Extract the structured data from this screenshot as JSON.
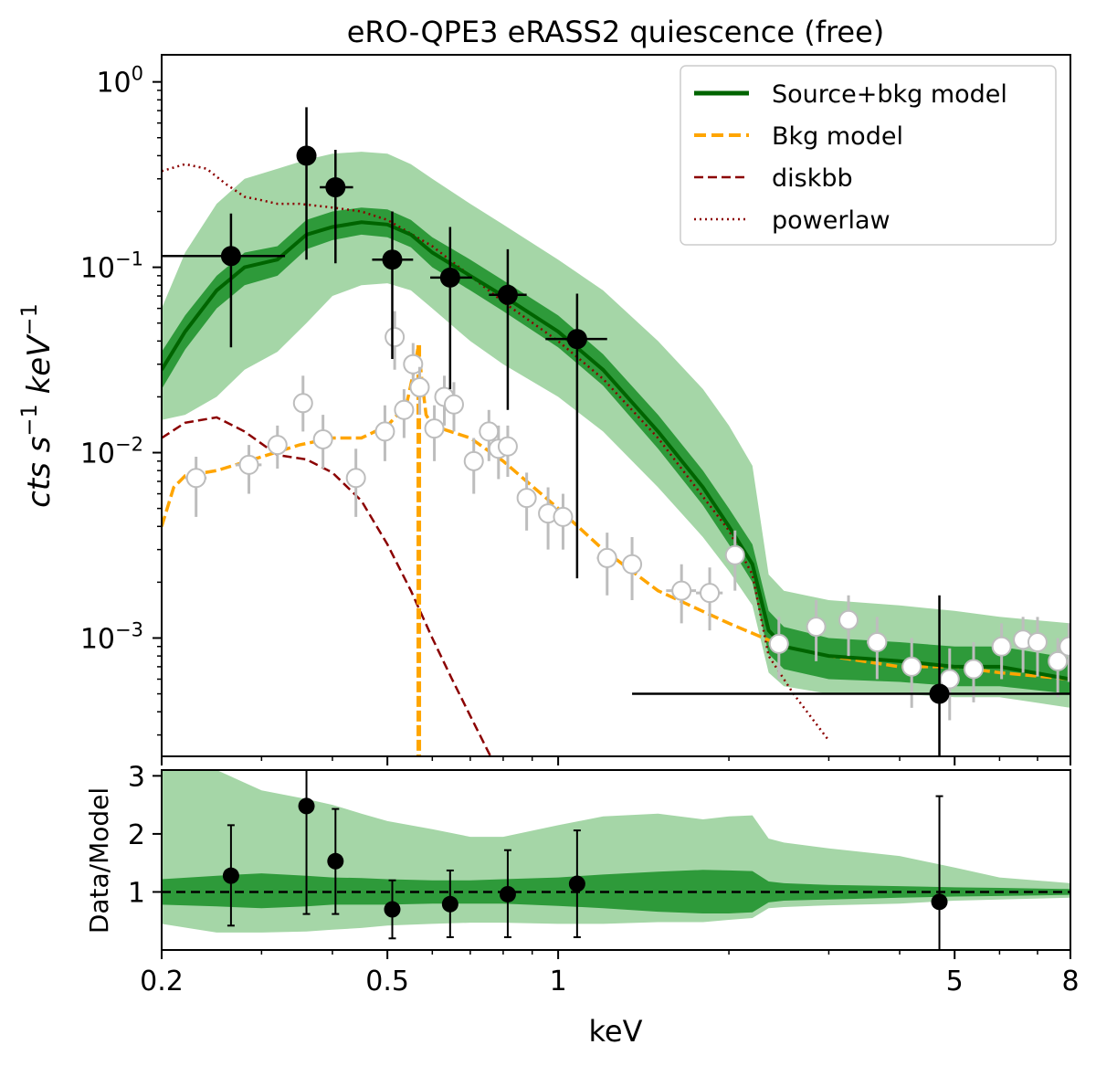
{
  "chart_data": [
    {
      "type": "line",
      "panel": "spectrum",
      "title": "eRO-QPE3 eRASS2 quiescence (free)",
      "ylabel": "cts s-1 keV-1",
      "ylabel_parts": {
        "base1": "cts s",
        "exp1": "−1",
        "base2": " keV",
        "exp2": "−1"
      },
      "xscale": "log",
      "yscale": "log",
      "xlim": [
        0.2,
        8.0
      ],
      "ylim": [
        0.00023,
        1.4
      ],
      "yticks": [
        {
          "value": 1.0,
          "base": "10",
          "exp": "0"
        },
        {
          "value": 0.1,
          "base": "10",
          "exp": "−1"
        },
        {
          "value": 0.01,
          "base": "10",
          "exp": "−2"
        },
        {
          "value": 0.001,
          "base": "10",
          "exp": "−3"
        }
      ],
      "legend": {
        "position": "upper right",
        "entries": [
          {
            "label": "Source+bkg model",
            "color": "#006400",
            "style": "solid"
          },
          {
            "label": "Bkg model",
            "color": "#FFA500",
            "style": "dashed"
          },
          {
            "label": "diskbb",
            "color": "#8B0000",
            "style": "dashed"
          },
          {
            "label": "powerlaw",
            "color": "#8B0000",
            "style": "dotted"
          }
        ]
      },
      "colors": {
        "band_outer": "#a5d6a7",
        "band_inner": "#2e9a3a",
        "model": "#006400",
        "bkg": "#FFA500",
        "disk": "#8B0000",
        "powerlaw": "#8B0000",
        "source_points": "#000000",
        "bkg_points": "#bdbdbd"
      },
      "series": [
        {
          "id": "model",
          "x": [
            0.2,
            0.22,
            0.25,
            0.28,
            0.32,
            0.36,
            0.4,
            0.45,
            0.5,
            0.55,
            0.6,
            0.7,
            0.8,
            1.0,
            1.2,
            1.5,
            1.8,
            2.0,
            2.2,
            2.35,
            2.5,
            3.0,
            4.0,
            5.0,
            6.0,
            8.0
          ],
          "y": [
            0.028,
            0.045,
            0.075,
            0.1,
            0.11,
            0.15,
            0.165,
            0.175,
            0.17,
            0.15,
            0.12,
            0.09,
            0.07,
            0.045,
            0.028,
            0.013,
            0.0065,
            0.004,
            0.0025,
            0.0011,
            0.0009,
            0.0008,
            0.00075,
            0.0007,
            0.0007,
            0.0006
          ],
          "inner_lo": [
            0.022,
            0.036,
            0.06,
            0.08,
            0.09,
            0.125,
            0.14,
            0.15,
            0.145,
            0.128,
            0.1,
            0.075,
            0.058,
            0.037,
            0.023,
            0.0105,
            0.0052,
            0.0032,
            0.002,
            0.00082,
            0.00068,
            0.0006,
            0.00058,
            0.00055,
            0.00055,
            0.0005
          ],
          "inner_hi": [
            0.035,
            0.055,
            0.09,
            0.12,
            0.13,
            0.18,
            0.2,
            0.21,
            0.205,
            0.18,
            0.145,
            0.11,
            0.085,
            0.055,
            0.034,
            0.016,
            0.008,
            0.005,
            0.0032,
            0.0014,
            0.00115,
            0.001,
            0.00095,
            0.0009,
            0.0009,
            0.00078
          ],
          "outer_lo": [
            0.015,
            0.016,
            0.02,
            0.028,
            0.035,
            0.05,
            0.07,
            0.08,
            0.082,
            0.075,
            0.06,
            0.04,
            0.03,
            0.02,
            0.013,
            0.0065,
            0.0035,
            0.0023,
            0.0015,
            0.00065,
            0.00055,
            0.0005,
            0.0005,
            0.00048,
            0.00048,
            0.00042
          ],
          "outer_hi": [
            0.06,
            0.12,
            0.22,
            0.3,
            0.34,
            0.38,
            0.41,
            0.42,
            0.41,
            0.36,
            0.3,
            0.22,
            0.17,
            0.11,
            0.075,
            0.04,
            0.022,
            0.014,
            0.0085,
            0.0022,
            0.0018,
            0.0016,
            0.0015,
            0.0014,
            0.0013,
            0.0012
          ]
        },
        {
          "id": "bkg",
          "x": [
            0.2,
            0.21,
            0.22,
            0.25,
            0.3,
            0.35,
            0.4,
            0.45,
            0.5,
            0.54,
            0.56,
            0.567,
            0.575,
            0.585,
            0.6,
            0.7,
            0.8,
            1.0,
            1.2,
            1.5,
            2.0,
            2.5,
            3.0,
            4.0,
            5.0,
            6.0,
            8.0
          ],
          "y": [
            0.004,
            0.0065,
            0.0075,
            0.008,
            0.0095,
            0.011,
            0.012,
            0.012,
            0.014,
            0.018,
            0.03,
            0.038,
            0.025,
            0.016,
            0.014,
            0.012,
            0.009,
            0.005,
            0.003,
            0.0018,
            0.0012,
            0.0009,
            0.0008,
            0.0007,
            0.0007,
            0.00065,
            0.0006
          ]
        },
        {
          "id": "bkg_line",
          "x": [
            0.568
          ],
          "y_top": [
            0.038
          ],
          "y_bottom": [
            0.00023
          ]
        },
        {
          "id": "diskbb",
          "x": [
            0.2,
            0.22,
            0.25,
            0.28,
            0.32,
            0.36,
            0.4,
            0.45,
            0.5,
            0.55,
            0.6,
            0.65,
            0.7,
            0.76
          ],
          "y": [
            0.012,
            0.0145,
            0.0155,
            0.013,
            0.0097,
            0.0092,
            0.0078,
            0.0055,
            0.0032,
            0.0018,
            0.001,
            0.0006,
            0.00038,
            0.00023
          ]
        },
        {
          "id": "powerlaw",
          "x": [
            0.2,
            0.22,
            0.24,
            0.26,
            0.28,
            0.3,
            0.32,
            0.35,
            0.4,
            0.45,
            0.5,
            0.6,
            0.7,
            0.8,
            1.0,
            1.2,
            1.5,
            2.0,
            2.2,
            2.35,
            2.6,
            3.0
          ],
          "y": [
            0.33,
            0.36,
            0.34,
            0.28,
            0.24,
            0.23,
            0.22,
            0.22,
            0.21,
            0.2,
            0.18,
            0.13,
            0.09,
            0.065,
            0.04,
            0.025,
            0.012,
            0.0038,
            0.0022,
            0.0008,
            0.0005,
            0.00028
          ]
        }
      ],
      "source_points": [
        {
          "x": 0.265,
          "y": 0.115,
          "xlo": 0.2,
          "xhi": 0.33,
          "ylo": 0.037,
          "yhi": 0.195
        },
        {
          "x": 0.36,
          "y": 0.4,
          "xlo": 0.35,
          "xhi": 0.37,
          "ylo": 0.11,
          "yhi": 0.73
        },
        {
          "x": 0.405,
          "y": 0.27,
          "xlo": 0.38,
          "xhi": 0.435,
          "ylo": 0.105,
          "yhi": 0.43
        },
        {
          "x": 0.51,
          "y": 0.11,
          "xlo": 0.47,
          "xhi": 0.555,
          "ylo": 0.032,
          "yhi": 0.2
        },
        {
          "x": 0.645,
          "y": 0.088,
          "xlo": 0.595,
          "xhi": 0.705,
          "ylo": 0.022,
          "yhi": 0.165
        },
        {
          "x": 0.815,
          "y": 0.071,
          "xlo": 0.755,
          "xhi": 0.88,
          "ylo": 0.017,
          "yhi": 0.125
        },
        {
          "x": 1.08,
          "y": 0.041,
          "xlo": 0.95,
          "xhi": 1.22,
          "ylo": 0.0021,
          "yhi": 0.072
        },
        {
          "x": 4.7,
          "y": 0.0005,
          "xlo": 1.35,
          "xhi": 8.0,
          "ylo": 0.00023,
          "yhi": 0.0017
        }
      ],
      "bkg_points": [
        {
          "x": 0.23,
          "y": 0.0073,
          "xlo": 0.22,
          "xhi": 0.24,
          "ylo": 0.0045,
          "yhi": 0.0095
        },
        {
          "x": 0.285,
          "y": 0.0086,
          "xlo": 0.27,
          "xhi": 0.3,
          "ylo": 0.006,
          "yhi": 0.011
        },
        {
          "x": 0.32,
          "y": 0.011,
          "xlo": 0.31,
          "xhi": 0.33,
          "ylo": 0.0082,
          "yhi": 0.014
        },
        {
          "x": 0.355,
          "y": 0.0185,
          "xlo": 0.345,
          "xhi": 0.365,
          "ylo": 0.013,
          "yhi": 0.026
        },
        {
          "x": 0.385,
          "y": 0.0118,
          "xlo": 0.375,
          "xhi": 0.395,
          "ylo": 0.0082,
          "yhi": 0.016
        },
        {
          "x": 0.44,
          "y": 0.0073,
          "xlo": 0.425,
          "xhi": 0.455,
          "ylo": 0.0045,
          "yhi": 0.0105
        },
        {
          "x": 0.495,
          "y": 0.013,
          "xlo": 0.485,
          "xhi": 0.505,
          "ylo": 0.009,
          "yhi": 0.018
        },
        {
          "x": 0.515,
          "y": 0.042,
          "xlo": 0.505,
          "xhi": 0.525,
          "ylo": 0.028,
          "yhi": 0.058
        },
        {
          "x": 0.535,
          "y": 0.017,
          "xlo": 0.525,
          "xhi": 0.545,
          "ylo": 0.012,
          "yhi": 0.022
        },
        {
          "x": 0.555,
          "y": 0.03,
          "xlo": 0.545,
          "xhi": 0.565,
          "ylo": 0.021,
          "yhi": 0.039
        },
        {
          "x": 0.57,
          "y": 0.0225,
          "xlo": 0.56,
          "xhi": 0.58,
          "ylo": 0.016,
          "yhi": 0.029
        },
        {
          "x": 0.605,
          "y": 0.0135,
          "xlo": 0.59,
          "xhi": 0.62,
          "ylo": 0.009,
          "yhi": 0.018
        },
        {
          "x": 0.63,
          "y": 0.02,
          "xlo": 0.62,
          "xhi": 0.64,
          "ylo": 0.014,
          "yhi": 0.026
        },
        {
          "x": 0.655,
          "y": 0.0182,
          "xlo": 0.645,
          "xhi": 0.665,
          "ylo": 0.013,
          "yhi": 0.024
        },
        {
          "x": 0.71,
          "y": 0.009,
          "xlo": 0.695,
          "xhi": 0.725,
          "ylo": 0.006,
          "yhi": 0.012
        },
        {
          "x": 0.755,
          "y": 0.013,
          "xlo": 0.74,
          "xhi": 0.77,
          "ylo": 0.009,
          "yhi": 0.017
        },
        {
          "x": 0.785,
          "y": 0.0105,
          "xlo": 0.77,
          "xhi": 0.8,
          "ylo": 0.0072,
          "yhi": 0.014
        },
        {
          "x": 0.815,
          "y": 0.0108,
          "xlo": 0.8,
          "xhi": 0.83,
          "ylo": 0.0074,
          "yhi": 0.014
        },
        {
          "x": 0.88,
          "y": 0.0057,
          "xlo": 0.86,
          "xhi": 0.9,
          "ylo": 0.0038,
          "yhi": 0.0078
        },
        {
          "x": 0.96,
          "y": 0.0047,
          "xlo": 0.94,
          "xhi": 0.98,
          "ylo": 0.003,
          "yhi": 0.0065
        },
        {
          "x": 1.02,
          "y": 0.0045,
          "xlo": 1.0,
          "xhi": 1.04,
          "ylo": 0.003,
          "yhi": 0.006
        },
        {
          "x": 1.22,
          "y": 0.0027,
          "xlo": 1.17,
          "xhi": 1.27,
          "ylo": 0.0017,
          "yhi": 0.0037
        },
        {
          "x": 1.35,
          "y": 0.0025,
          "xlo": 1.3,
          "xhi": 1.4,
          "ylo": 0.0016,
          "yhi": 0.0035
        },
        {
          "x": 1.65,
          "y": 0.0018,
          "xlo": 1.55,
          "xhi": 1.75,
          "ylo": 0.0012,
          "yhi": 0.0025
        },
        {
          "x": 1.85,
          "y": 0.00175,
          "xlo": 1.75,
          "xhi": 1.95,
          "ylo": 0.0011,
          "yhi": 0.0024
        },
        {
          "x": 2.05,
          "y": 0.0028,
          "xlo": 2.0,
          "xhi": 2.1,
          "ylo": 0.0018,
          "yhi": 0.0038
        },
        {
          "x": 2.45,
          "y": 0.00093,
          "xlo": 2.35,
          "xhi": 2.55,
          "ylo": 0.0006,
          "yhi": 0.0013
        },
        {
          "x": 2.85,
          "y": 0.00115,
          "xlo": 2.75,
          "xhi": 2.95,
          "ylo": 0.00075,
          "yhi": 0.0016
        },
        {
          "x": 3.25,
          "y": 0.00125,
          "xlo": 3.15,
          "xhi": 3.35,
          "ylo": 0.0008,
          "yhi": 0.0017
        },
        {
          "x": 3.65,
          "y": 0.00095,
          "xlo": 3.5,
          "xhi": 3.8,
          "ylo": 0.0006,
          "yhi": 0.0013
        },
        {
          "x": 4.2,
          "y": 0.0007,
          "xlo": 4.05,
          "xhi": 4.35,
          "ylo": 0.00042,
          "yhi": 0.001
        },
        {
          "x": 4.9,
          "y": 0.0006,
          "xlo": 4.7,
          "xhi": 5.1,
          "ylo": 0.00036,
          "yhi": 0.00088
        },
        {
          "x": 5.4,
          "y": 0.00068,
          "xlo": 5.2,
          "xhi": 5.6,
          "ylo": 0.00045,
          "yhi": 0.00095
        },
        {
          "x": 6.05,
          "y": 0.0009,
          "xlo": 5.85,
          "xhi": 6.25,
          "ylo": 0.0006,
          "yhi": 0.0012
        },
        {
          "x": 6.6,
          "y": 0.00098,
          "xlo": 6.45,
          "xhi": 6.75,
          "ylo": 0.00065,
          "yhi": 0.0013
        },
        {
          "x": 7.0,
          "y": 0.00095,
          "xlo": 6.85,
          "xhi": 7.15,
          "ylo": 0.00062,
          "yhi": 0.0013
        },
        {
          "x": 7.6,
          "y": 0.00075,
          "xlo": 7.4,
          "xhi": 7.8,
          "ylo": 0.00048,
          "yhi": 0.001
        },
        {
          "x": 7.95,
          "y": 0.0009,
          "xlo": 7.8,
          "xhi": 8.0,
          "ylo": 0.00058,
          "yhi": 0.0012
        }
      ]
    },
    {
      "type": "scatter",
      "panel": "ratio",
      "xlabel": "keV",
      "ylabel": "Data/Model",
      "xscale": "log",
      "xlim": [
        0.2,
        8.0
      ],
      "ylim": [
        0.0,
        3.1
      ],
      "yticks": [
        {
          "value": 1,
          "label": "1"
        },
        {
          "value": 2,
          "label": "2"
        },
        {
          "value": 3,
          "label": "3"
        }
      ],
      "xticks": [
        {
          "value": 0.2,
          "label": "0.2"
        },
        {
          "value": 0.5,
          "label": "0.5"
        },
        {
          "value": 1.0,
          "label": "1"
        },
        {
          "value": 5.0,
          "label": "5"
        },
        {
          "value": 8.0,
          "label": "8"
        }
      ],
      "reference_line": 1.0,
      "band": {
        "x": [
          0.2,
          0.25,
          0.3,
          0.36,
          0.4,
          0.45,
          0.5,
          0.6,
          0.7,
          0.8,
          1.0,
          1.2,
          1.5,
          1.8,
          2.0,
          2.2,
          2.35,
          2.5,
          3.0,
          4.0,
          5.0,
          6.0,
          8.0
        ],
        "outer_lo": [
          0.45,
          0.3,
          0.3,
          0.32,
          0.35,
          0.38,
          0.42,
          0.45,
          0.47,
          0.47,
          0.45,
          0.45,
          0.48,
          0.48,
          0.52,
          0.55,
          0.72,
          0.74,
          0.77,
          0.8,
          0.85,
          0.87,
          0.9
        ],
        "outer_hi": [
          3.1,
          3.1,
          2.75,
          2.6,
          2.5,
          2.35,
          2.22,
          2.08,
          1.95,
          1.95,
          2.15,
          2.3,
          2.35,
          2.25,
          2.3,
          2.32,
          1.92,
          1.85,
          1.75,
          1.62,
          1.42,
          1.25,
          1.15
        ],
        "inner_lo": [
          0.78,
          0.75,
          0.72,
          0.75,
          0.78,
          0.78,
          0.78,
          0.8,
          0.8,
          0.8,
          0.76,
          0.72,
          0.66,
          0.63,
          0.63,
          0.65,
          0.82,
          0.85,
          0.87,
          0.9,
          0.92,
          0.93,
          0.95
        ],
        "inner_hi": [
          1.22,
          1.28,
          1.32,
          1.28,
          1.25,
          1.24,
          1.22,
          1.2,
          1.2,
          1.22,
          1.25,
          1.3,
          1.35,
          1.38,
          1.37,
          1.36,
          1.18,
          1.15,
          1.12,
          1.1,
          1.08,
          1.07,
          1.05
        ]
      },
      "points": [
        {
          "x": 0.265,
          "y": 1.28,
          "ylo": 0.42,
          "yhi": 2.15
        },
        {
          "x": 0.36,
          "y": 2.48,
          "ylo": 0.62,
          "yhi": 3.1
        },
        {
          "x": 0.405,
          "y": 1.53,
          "ylo": 0.62,
          "yhi": 2.43
        },
        {
          "x": 0.51,
          "y": 0.7,
          "ylo": 0.2,
          "yhi": 1.2
        },
        {
          "x": 0.645,
          "y": 0.79,
          "ylo": 0.22,
          "yhi": 1.37
        },
        {
          "x": 0.815,
          "y": 0.96,
          "ylo": 0.22,
          "yhi": 1.72
        },
        {
          "x": 1.08,
          "y": 1.14,
          "ylo": 0.22,
          "yhi": 2.06
        },
        {
          "x": 4.7,
          "y": 0.83,
          "ylo": 0.0,
          "yhi": 2.65
        }
      ]
    }
  ]
}
